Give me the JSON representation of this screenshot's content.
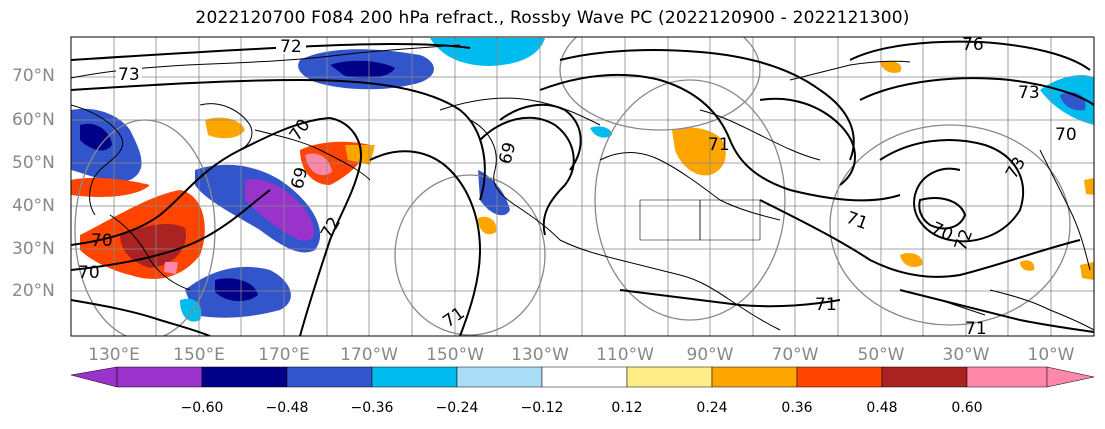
{
  "title": "2022120700 F084 200 hPa refract., Rossby Wave PC (2022120900 - 2022121300)",
  "lat_labels": [
    "70°N",
    "60°N",
    "50°N",
    "40°N",
    "30°N",
    "20°N"
  ],
  "lon_labels": [
    "130°E",
    "150°E",
    "170°E",
    "170°W",
    "150°W",
    "130°W",
    "110°W",
    "90°W",
    "70°W",
    "50°W",
    "30°W",
    "10°W"
  ],
  "colorbar": {
    "colors": [
      "#9933cc",
      "#000088",
      "#3355cc",
      "#00bbee",
      "#aaddf5",
      "#ffffff",
      "#ffee88",
      "#ffa500",
      "#ff4400",
      "#aa2222",
      "#ff88aa"
    ],
    "ticks": [
      "−0.60",
      "−0.48",
      "−0.36",
      "−0.24",
      "−0.12",
      "0.12",
      "0.24",
      "0.36",
      "0.48",
      "0.60"
    ]
  },
  "contour_labels": [
    "72",
    "73",
    "70",
    "69",
    "70",
    "72",
    "69",
    "71",
    "71",
    "76",
    "73",
    "70",
    "70",
    "72",
    "71",
    "71",
    "73",
    "70",
    "71"
  ]
}
